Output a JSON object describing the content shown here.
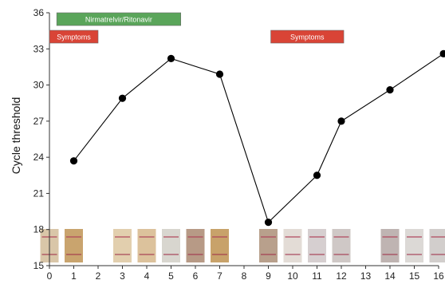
{
  "chart_data": {
    "type": "line",
    "ylabel": "Cycle threshold",
    "xlabel": "",
    "xlim": [
      0,
      16
    ],
    "ylim": [
      15,
      36
    ],
    "x_ticks": [
      0,
      1,
      2,
      3,
      4,
      5,
      6,
      7,
      8,
      9,
      10,
      11,
      12,
      13,
      14,
      15,
      16
    ],
    "y_ticks": [
      15,
      18,
      21,
      24,
      27,
      30,
      33,
      36
    ],
    "grid": false,
    "series": [
      {
        "color": "#000000",
        "points": [
          {
            "x": 1,
            "y": 23.7
          },
          {
            "x": 3,
            "y": 28.9
          },
          {
            "x": 5,
            "y": 32.2
          },
          {
            "x": 7,
            "y": 30.9
          },
          {
            "x": 9,
            "y": 18.6
          },
          {
            "x": 11,
            "y": 22.5
          },
          {
            "x": 12,
            "y": 27.0
          },
          {
            "x": 14,
            "y": 29.6
          },
          {
            "x": 16.2,
            "y": 32.6
          }
        ]
      }
    ],
    "annotations": [
      {
        "label": "Nirmatrelvir/Ritonavir",
        "x_start": 0.3,
        "x_end": 5.4,
        "color": "#5aa55a"
      },
      {
        "label": "Symptoms",
        "x_start": 0,
        "x_end": 2.0,
        "color": "#d94436"
      },
      {
        "label": "Symptoms",
        "x_start": 9.1,
        "x_end": 12.1,
        "color": "#d94436"
      }
    ],
    "test_strip_days": [
      0,
      1,
      3,
      4,
      5,
      6,
      7,
      9,
      10,
      11,
      12,
      14,
      15,
      16
    ]
  }
}
